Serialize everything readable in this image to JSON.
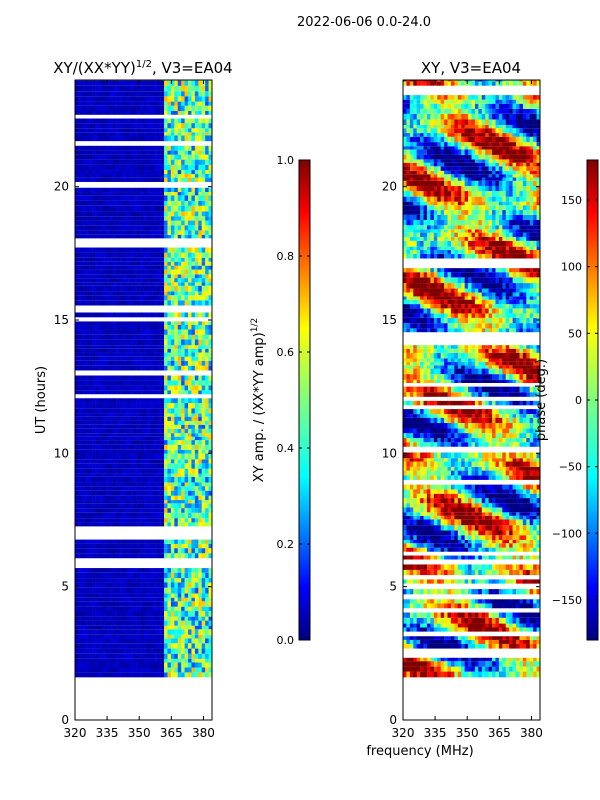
{
  "figure": {
    "suptitle": "2022-06-06 0.0-24.0",
    "xlabel": "frequency (MHz)"
  },
  "chart_data": [
    {
      "type": "heatmap",
      "title": "XY/(XX*YY)",
      "title_exponent": "1/2",
      "title_suffix": ", V3=EA04",
      "ylabel": "UT (hours)",
      "xlim": [
        320,
        384
      ],
      "ylim": [
        0,
        24
      ],
      "xticks": [
        320,
        335,
        350,
        365,
        380
      ],
      "yticks": [
        0,
        5,
        10,
        15,
        20
      ],
      "data_start_hour": 1.6,
      "band_start_mhz": 361,
      "colorbar": {
        "label": "XY amp. / (XX*YY amp)",
        "label_exponent": "1/2",
        "range": [
          0.0,
          1.0
        ],
        "ticks": [
          "0.0",
          "0.2",
          "0.4",
          "0.6",
          "0.8",
          "1.0"
        ]
      }
    },
    {
      "type": "heatmap",
      "title": "XY, V3=EA04",
      "ylabel": "",
      "xlim": [
        320,
        384
      ],
      "ylim": [
        0,
        24
      ],
      "xticks": [
        320,
        335,
        350,
        365,
        380
      ],
      "yticks": [
        0,
        5,
        10,
        15,
        20
      ],
      "data_start_hour": 1.6,
      "colorbar": {
        "label": "phase (deg.)",
        "range": [
          -180,
          180
        ],
        "ticks": [
          "−150",
          "−100",
          "−50",
          "0",
          "50",
          "100",
          "150"
        ]
      }
    }
  ]
}
